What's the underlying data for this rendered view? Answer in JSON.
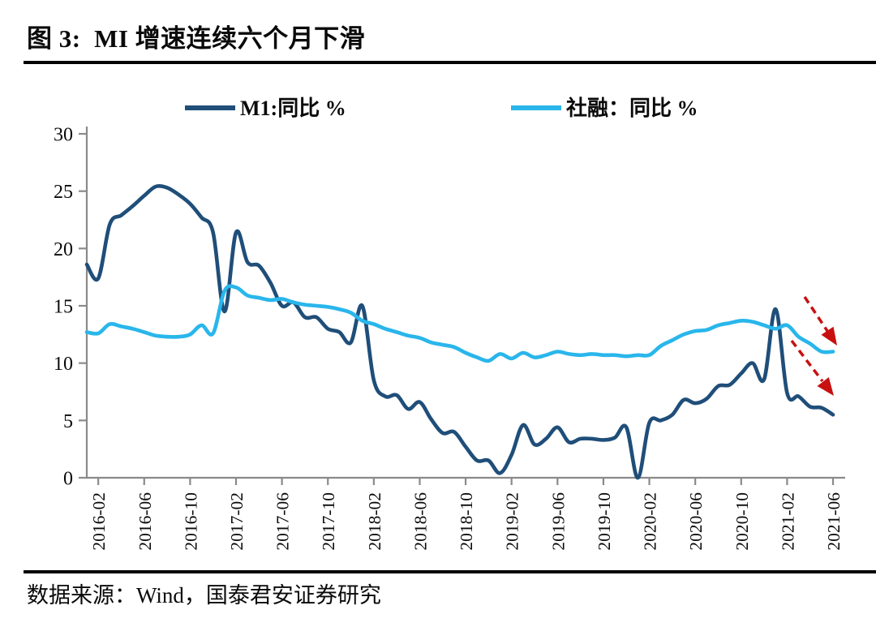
{
  "figure": {
    "title": "图 3:  MI 增速连续六个月下滑",
    "source": "数据来源：Wind，国泰君安证券研究"
  },
  "colors": {
    "m1_line": "#1F4E79",
    "shehuirong_line": "#29B6EB",
    "annotation_arrow": "#C81010",
    "axis": "#8a8a8a",
    "text": "#0a0a0a"
  },
  "chart_data": {
    "type": "line",
    "title": "图 3:  MI 增速连续六个月下滑",
    "xlabel": "",
    "ylabel": "",
    "ylim": [
      0,
      30
    ],
    "y_ticks": [
      0,
      5,
      10,
      15,
      20,
      25,
      30
    ],
    "x_start": "2016-01",
    "x_end": "2021-06",
    "x_freq": "monthly",
    "x_tick_labels": [
      "2016-02",
      "2016-06",
      "2016-10",
      "2017-02",
      "2017-06",
      "2017-10",
      "2018-02",
      "2018-06",
      "2018-10",
      "2019-02",
      "2019-06",
      "2019-10",
      "2020-02",
      "2020-06",
      "2020-10",
      "2021-02",
      "2021-06"
    ],
    "grid": false,
    "legend_position": "top",
    "series": [
      {
        "name": "M1:同比 %",
        "color": "#1F4E79",
        "values": [
          18.6,
          17.4,
          22.1,
          22.9,
          23.7,
          24.6,
          25.4,
          25.3,
          24.7,
          23.9,
          22.7,
          21.4,
          14.5,
          21.4,
          18.8,
          18.5,
          17.0,
          15.0,
          15.3,
          14.0,
          14.0,
          13.0,
          12.7,
          11.8,
          15.0,
          8.5,
          7.1,
          7.2,
          6.0,
          6.6,
          5.1,
          3.9,
          4.0,
          2.7,
          1.5,
          1.5,
          0.4,
          2.0,
          4.6,
          2.9,
          3.4,
          4.4,
          3.1,
          3.4,
          3.4,
          3.3,
          3.5,
          4.4,
          0.0,
          4.8,
          5.0,
          5.5,
          6.8,
          6.5,
          6.9,
          8.0,
          8.1,
          9.1,
          10.0,
          8.6,
          14.7,
          7.4,
          7.1,
          6.2,
          6.1,
          5.5
        ]
      },
      {
        "name": "社融：同比 %",
        "color": "#29B6EB",
        "values": [
          12.7,
          12.6,
          13.4,
          13.2,
          13.0,
          12.7,
          12.4,
          12.3,
          12.3,
          12.5,
          13.3,
          12.6,
          16.3,
          16.6,
          15.9,
          15.7,
          15.5,
          15.6,
          15.3,
          15.1,
          15.0,
          14.9,
          14.7,
          14.4,
          13.7,
          13.4,
          13.0,
          12.7,
          12.4,
          12.2,
          11.8,
          11.6,
          11.4,
          10.9,
          10.5,
          10.2,
          10.8,
          10.4,
          10.9,
          10.5,
          10.7,
          11.0,
          10.8,
          10.7,
          10.8,
          10.7,
          10.7,
          10.6,
          10.7,
          10.7,
          11.5,
          12.0,
          12.5,
          12.8,
          12.9,
          13.3,
          13.5,
          13.7,
          13.6,
          13.3,
          13.0,
          13.3,
          12.3,
          11.7,
          11.0,
          11.0
        ]
      }
    ],
    "annotations": [
      {
        "type": "arrow-down-right",
        "target": "end of 社融 line",
        "color": "#C81010"
      },
      {
        "type": "arrow-down-right",
        "target": "end of M1 line",
        "color": "#C81010"
      }
    ]
  }
}
